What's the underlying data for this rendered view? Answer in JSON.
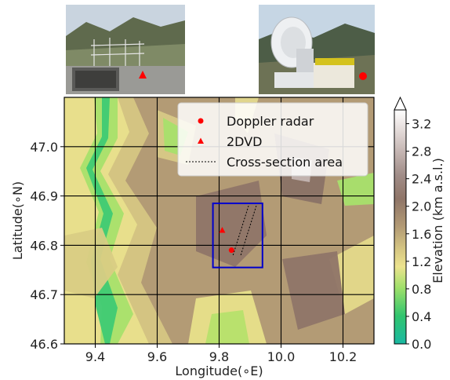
{
  "photos": [
    {
      "name": "2DVD site photo",
      "marker": "triangle"
    },
    {
      "name": "Doppler radar site photo",
      "marker": "circle"
    }
  ],
  "chart_data": {
    "type": "heatmap",
    "xlabel": "Longitude(∘E)",
    "ylabel": "Latitude(∘N)",
    "xlim": [
      9.3,
      10.3
    ],
    "ylim": [
      46.6,
      47.1
    ],
    "x_ticks": [
      "9.4",
      "9.6",
      "9.8",
      "10.0",
      "10.2"
    ],
    "x_tick_values": [
      9.4,
      9.6,
      9.8,
      10.0,
      10.2
    ],
    "y_ticks": [
      "46.6",
      "46.7",
      "46.8",
      "46.9",
      "47.0"
    ],
    "y_tick_values": [
      46.6,
      46.7,
      46.8,
      46.9,
      47.0
    ],
    "grid": true,
    "colorbar": {
      "label": "Elevation (km a.s.l.)",
      "min": 0.0,
      "max": 3.4,
      "ticks": [
        "0.0",
        "0.4",
        "0.8",
        "1.2",
        "1.6",
        "2.0",
        "2.4",
        "2.8",
        "3.2"
      ],
      "tick_values": [
        0.0,
        0.4,
        0.8,
        1.2,
        1.6,
        2.0,
        2.4,
        2.8,
        3.2
      ],
      "extend": "max"
    },
    "legend": {
      "placement": "top-right",
      "entries": [
        {
          "label": "Doppler radar",
          "marker": "circle",
          "color": "#ff0000"
        },
        {
          "label": "2DVD",
          "marker": "triangle",
          "color": "#ff0000"
        },
        {
          "label": "Cross-section area",
          "marker": "dashed-line",
          "color": "#000000"
        }
      ]
    },
    "markers": [
      {
        "label": "Doppler radar",
        "lon": 9.84,
        "lat": 46.79
      },
      {
        "label": "2DVD",
        "lon": 9.81,
        "lat": 46.83
      }
    ],
    "box": {
      "lon": [
        9.78,
        9.94
      ],
      "lat": [
        46.755,
        46.885
      ],
      "color": "#0000cc"
    },
    "cross_section_lines": [
      {
        "from": [
          9.845,
          46.78
        ],
        "to": [
          9.895,
          46.88
        ]
      },
      {
        "from": [
          9.87,
          46.78
        ],
        "to": [
          9.92,
          46.88
        ]
      }
    ]
  }
}
